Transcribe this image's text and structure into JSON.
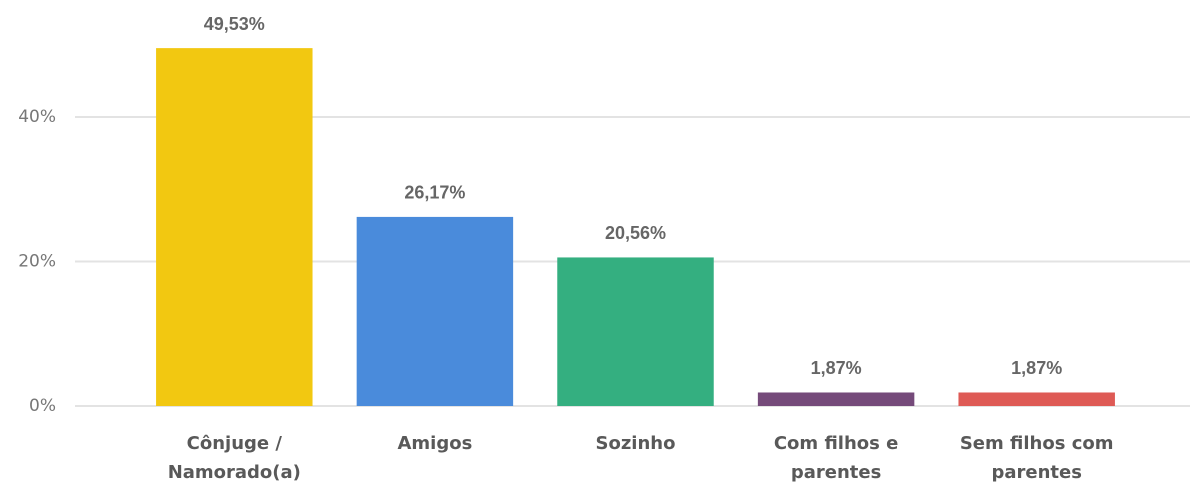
{
  "chart_data": {
    "type": "bar",
    "categories": [
      "Cônjuge / Namorado(a)",
      "Amigos",
      "Sozinho",
      "Com filhos e parentes",
      "Sem filhos com parentes"
    ],
    "values": [
      49.53,
      26.17,
      20.56,
      1.87,
      1.87
    ],
    "value_labels": [
      "49,53%",
      "26,17%",
      "20,56%",
      "1,87%",
      "1,87%"
    ],
    "colors": [
      "#f2c811",
      "#4a8bdb",
      "#34af80",
      "#754a7a",
      "#de5a55"
    ],
    "ylim": [
      0,
      55
    ],
    "yticks": [
      {
        "value": 0,
        "label": "0%"
      },
      {
        "value": 20,
        "label": "20%"
      },
      {
        "value": 40,
        "label": "40%"
      }
    ],
    "grid": true
  }
}
